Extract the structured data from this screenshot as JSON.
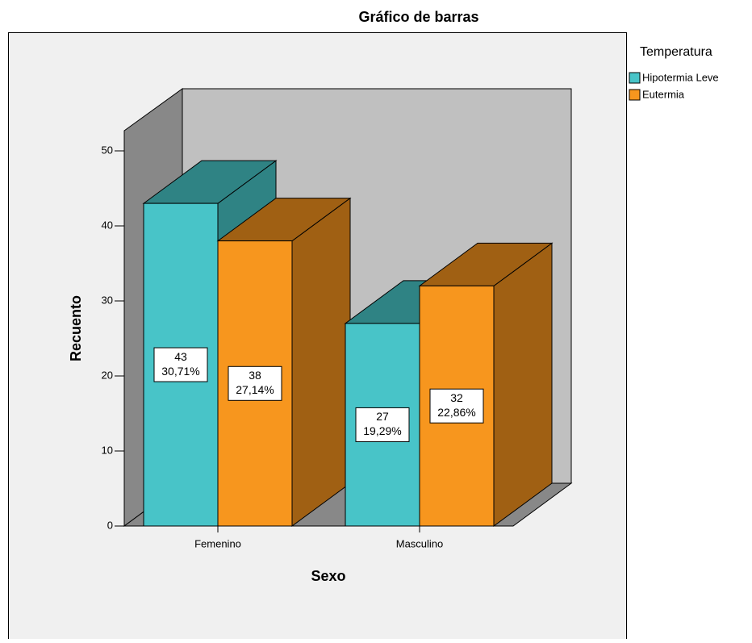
{
  "chart_data": {
    "type": "bar3d",
    "title": "Gráfico de barras",
    "x_label": "Sexo",
    "y_label": "Recuento",
    "categories": [
      "Femenino",
      "Masculino"
    ],
    "legend_title": "Temperatura",
    "series": [
      {
        "name": "Hipotermia Leve",
        "color": "#48c4c8",
        "side_color": "#2f8384",
        "values": [
          43,
          27
        ],
        "percent_labels": [
          "30,71%",
          "19,29%"
        ]
      },
      {
        "name": "Eutermia",
        "color": "#f7961e",
        "side_color": "#a06013",
        "values": [
          38,
          32
        ],
        "percent_labels": [
          "27,14%",
          "22,86%"
        ]
      }
    ],
    "ylim": [
      0,
      52.5
    ],
    "yticks": [
      0,
      10,
      20,
      30,
      40,
      50
    ]
  }
}
